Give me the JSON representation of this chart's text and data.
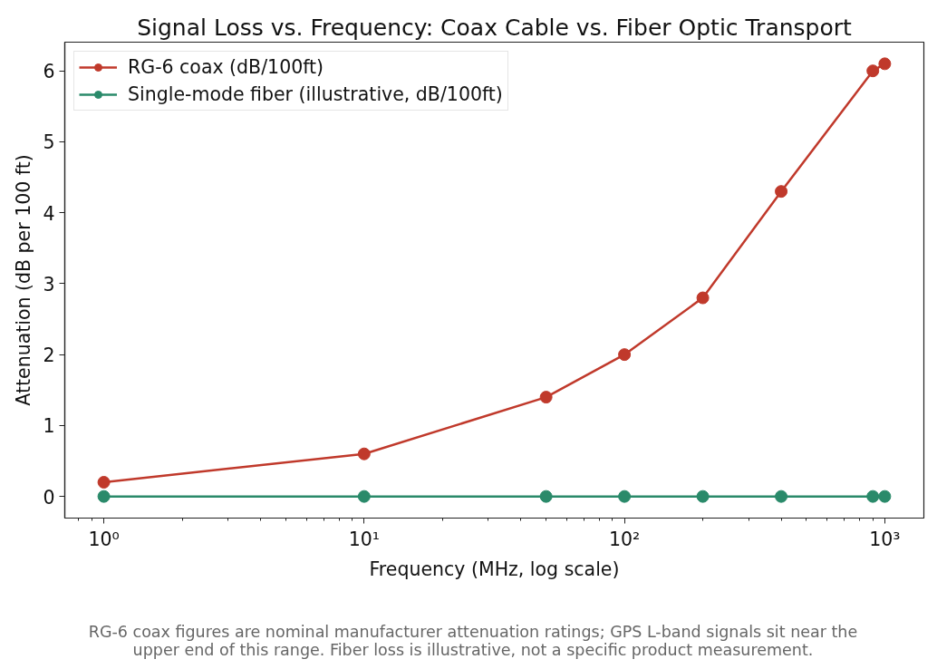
{
  "chart_data": {
    "type": "line",
    "title": "Signal Loss vs. Frequency: Coax Cable vs. Fiber Optic Transport",
    "xlabel": "Frequency (MHz, log scale)",
    "ylabel": "Attenuation (dB per 100 ft)",
    "annotations": [
      "RG-6 coax figures are nominal manufacturer attenuation ratings; GPS L-band signals sit near the upper end of this range. Fiber loss is illustrative, not a specific product measurement."
    ],
    "x": [
      1,
      10,
      50,
      100,
      200,
      400,
      900,
      1000
    ],
    "series": [
      {
        "name": "RG-6 coax (dB/100ft)",
        "color": "#c0392b",
        "values": [
          0.2,
          0.6,
          1.4,
          2.0,
          2.8,
          4.3,
          6.0,
          6.1
        ]
      },
      {
        "name": "Single-mode fiber (illustrative, dB/100ft)",
        "color": "#2a8a6a",
        "values": [
          0,
          0,
          0,
          0,
          0,
          0,
          0,
          0
        ]
      }
    ],
    "xlim": [
      0.708,
      1413
    ],
    "ylim": [
      -0.305,
      6.405
    ],
    "xticks": [
      {
        "value": 0.8,
        "label": null
      },
      {
        "value": 0.9,
        "label": null
      },
      {
        "value": 1,
        "label": "10⁰"
      },
      {
        "value": 2,
        "label": null
      },
      {
        "value": 3,
        "label": null
      },
      {
        "value": 4,
        "label": null
      },
      {
        "value": 5,
        "label": null
      },
      {
        "value": 6,
        "label": null
      },
      {
        "value": 7,
        "label": null
      },
      {
        "value": 8,
        "label": null
      },
      {
        "value": 9,
        "label": null
      },
      {
        "value": 10,
        "label": "10¹"
      },
      {
        "value": 20,
        "label": null
      },
      {
        "value": 30,
        "label": null
      },
      {
        "value": 40,
        "label": null
      },
      {
        "value": 50,
        "label": null
      },
      {
        "value": 60,
        "label": null
      },
      {
        "value": 70,
        "label": null
      },
      {
        "value": 80,
        "label": null
      },
      {
        "value": 90,
        "label": null
      },
      {
        "value": 100,
        "label": "10²"
      },
      {
        "value": 200,
        "label": null
      },
      {
        "value": 300,
        "label": null
      },
      {
        "value": 400,
        "label": null
      },
      {
        "value": 500,
        "label": null
      },
      {
        "value": 600,
        "label": null
      },
      {
        "value": 700,
        "label": null
      },
      {
        "value": 800,
        "label": null
      },
      {
        "value": 900,
        "label": null
      },
      {
        "value": 1000,
        "label": "10³"
      }
    ],
    "yticks": [
      0,
      1,
      2,
      3,
      4,
      5,
      6
    ],
    "log": "x",
    "grid": false,
    "legend": "top left",
    "marker": "circle",
    "line_style": "solid"
  }
}
